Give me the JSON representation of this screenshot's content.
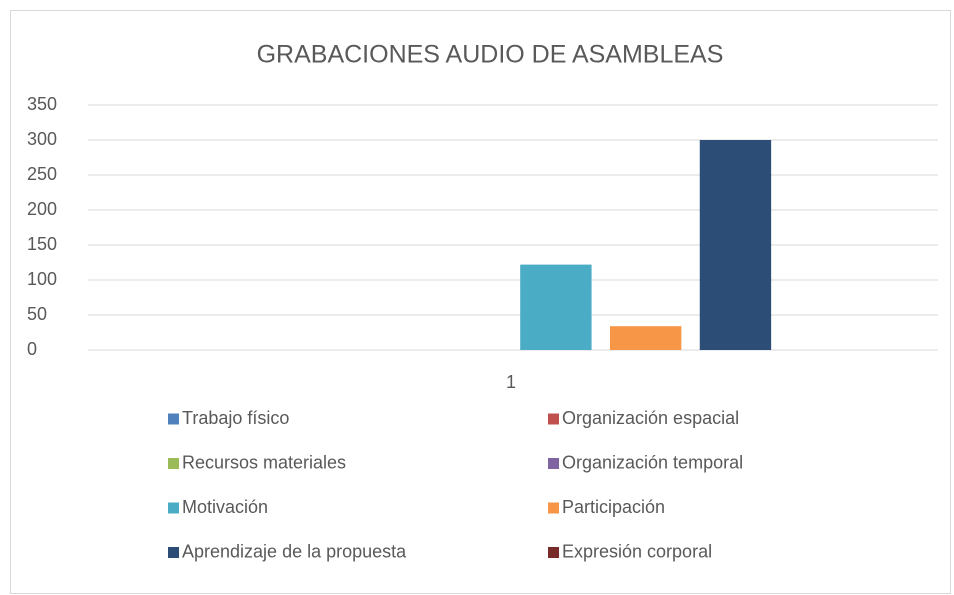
{
  "chart_data": {
    "type": "bar",
    "title": "GRABACIONES AUDIO DE ASAMBLEAS",
    "categories": [
      "1"
    ],
    "series": [
      {
        "name": "Trabajo físico",
        "color": "#4f81bd",
        "values": [
          0
        ]
      },
      {
        "name": "Organización espacial",
        "color": "#c0504d",
        "values": [
          0
        ]
      },
      {
        "name": "Recursos materiales",
        "color": "#9bbb59",
        "values": [
          0
        ]
      },
      {
        "name": "Organización temporal",
        "color": "#8064a2",
        "values": [
          0
        ]
      },
      {
        "name": "Motivación",
        "color": "#4bacc6",
        "values": [
          122
        ]
      },
      {
        "name": "Participación",
        "color": "#f79646",
        "values": [
          34
        ]
      },
      {
        "name": "Aprendizaje de la propuesta",
        "color": "#2c4d75",
        "values": [
          300
        ]
      },
      {
        "name": "Expresión corporal",
        "color": "#772c2a",
        "values": [
          0
        ]
      }
    ],
    "ylim": [
      0,
      350
    ],
    "yticks": [
      0,
      50,
      100,
      150,
      200,
      250,
      300,
      350
    ],
    "grid": true,
    "legend": "bottom"
  }
}
